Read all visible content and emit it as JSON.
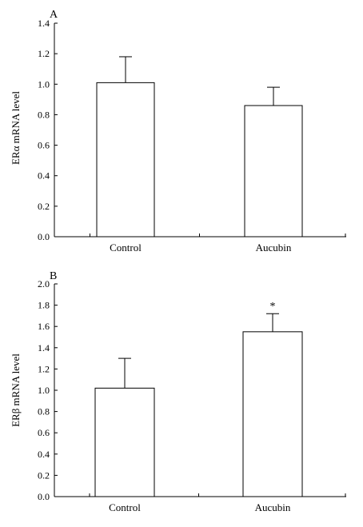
{
  "chart_data": [
    {
      "type": "bar",
      "panel_label": "A",
      "categories": [
        "Control",
        "Aucubin"
      ],
      "values": [
        1.01,
        0.86
      ],
      "errors": [
        0.17,
        0.12
      ],
      "annotations": [
        "",
        ""
      ],
      "ylabel": "ERα mRNA level",
      "xlabel": "",
      "ylim": [
        0,
        1.4
      ],
      "yticks": [
        "0.0",
        "0.2",
        "0.4",
        "0.6",
        "0.8",
        "1.0",
        "1.2",
        "1.4"
      ],
      "grid": false,
      "bar_fill": "#ffffff",
      "line_color": "#000000"
    },
    {
      "type": "bar",
      "panel_label": "B",
      "categories": [
        "Control",
        "Aucubin"
      ],
      "values": [
        1.02,
        1.55
      ],
      "errors": [
        0.28,
        0.17
      ],
      "annotations": [
        "",
        "*"
      ],
      "ylabel": "ERβ mRNA level",
      "xlabel": "",
      "ylim": [
        0,
        2.0
      ],
      "yticks": [
        "0.0",
        "0.2",
        "0.4",
        "0.6",
        "0.8",
        "1.0",
        "1.2",
        "1.4",
        "1.6",
        "1.8",
        "2.0"
      ],
      "grid": false,
      "bar_fill": "#ffffff",
      "line_color": "#000000"
    }
  ]
}
